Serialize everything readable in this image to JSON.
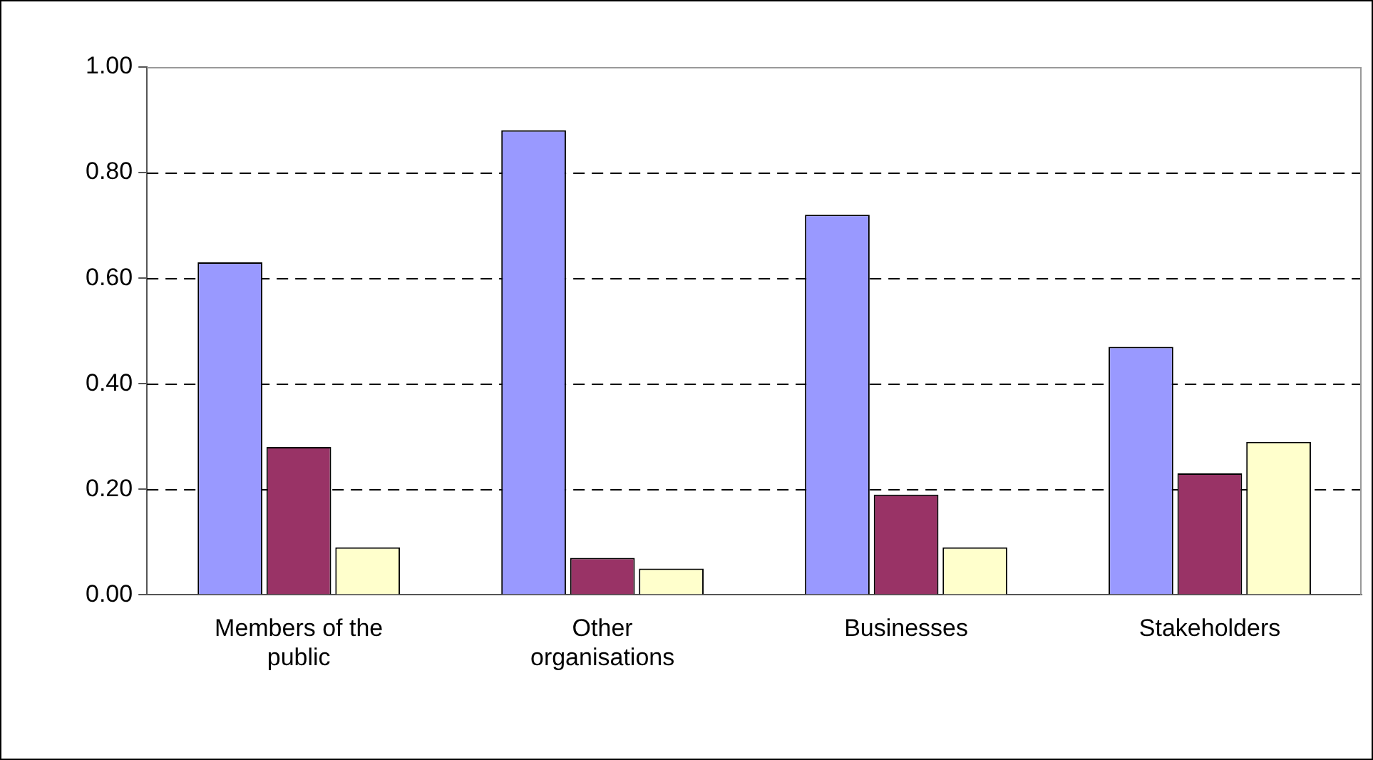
{
  "chart_data": {
    "type": "bar",
    "categories": [
      "Members of the public",
      "Other organisations",
      "Businesses",
      "Stakeholders"
    ],
    "series": [
      {
        "color": "#9999ff",
        "values": [
          0.63,
          0.88,
          0.72,
          0.47
        ]
      },
      {
        "color": "#993366",
        "values": [
          0.28,
          0.07,
          0.19,
          0.23
        ]
      },
      {
        "color": "#ffffcc",
        "values": [
          0.09,
          0.05,
          0.09,
          0.29
        ]
      }
    ],
    "ylim": [
      0,
      1
    ],
    "yticks": [
      {
        "value": 0,
        "label": "0.00"
      },
      {
        "value": 0.2,
        "label": "0.20"
      },
      {
        "value": 0.4,
        "label": "0.40"
      },
      {
        "value": 0.6,
        "label": "0.60"
      },
      {
        "value": 0.8,
        "label": "0.80"
      },
      {
        "value": 1,
        "label": "1.00"
      }
    ],
    "grid": "y"
  }
}
